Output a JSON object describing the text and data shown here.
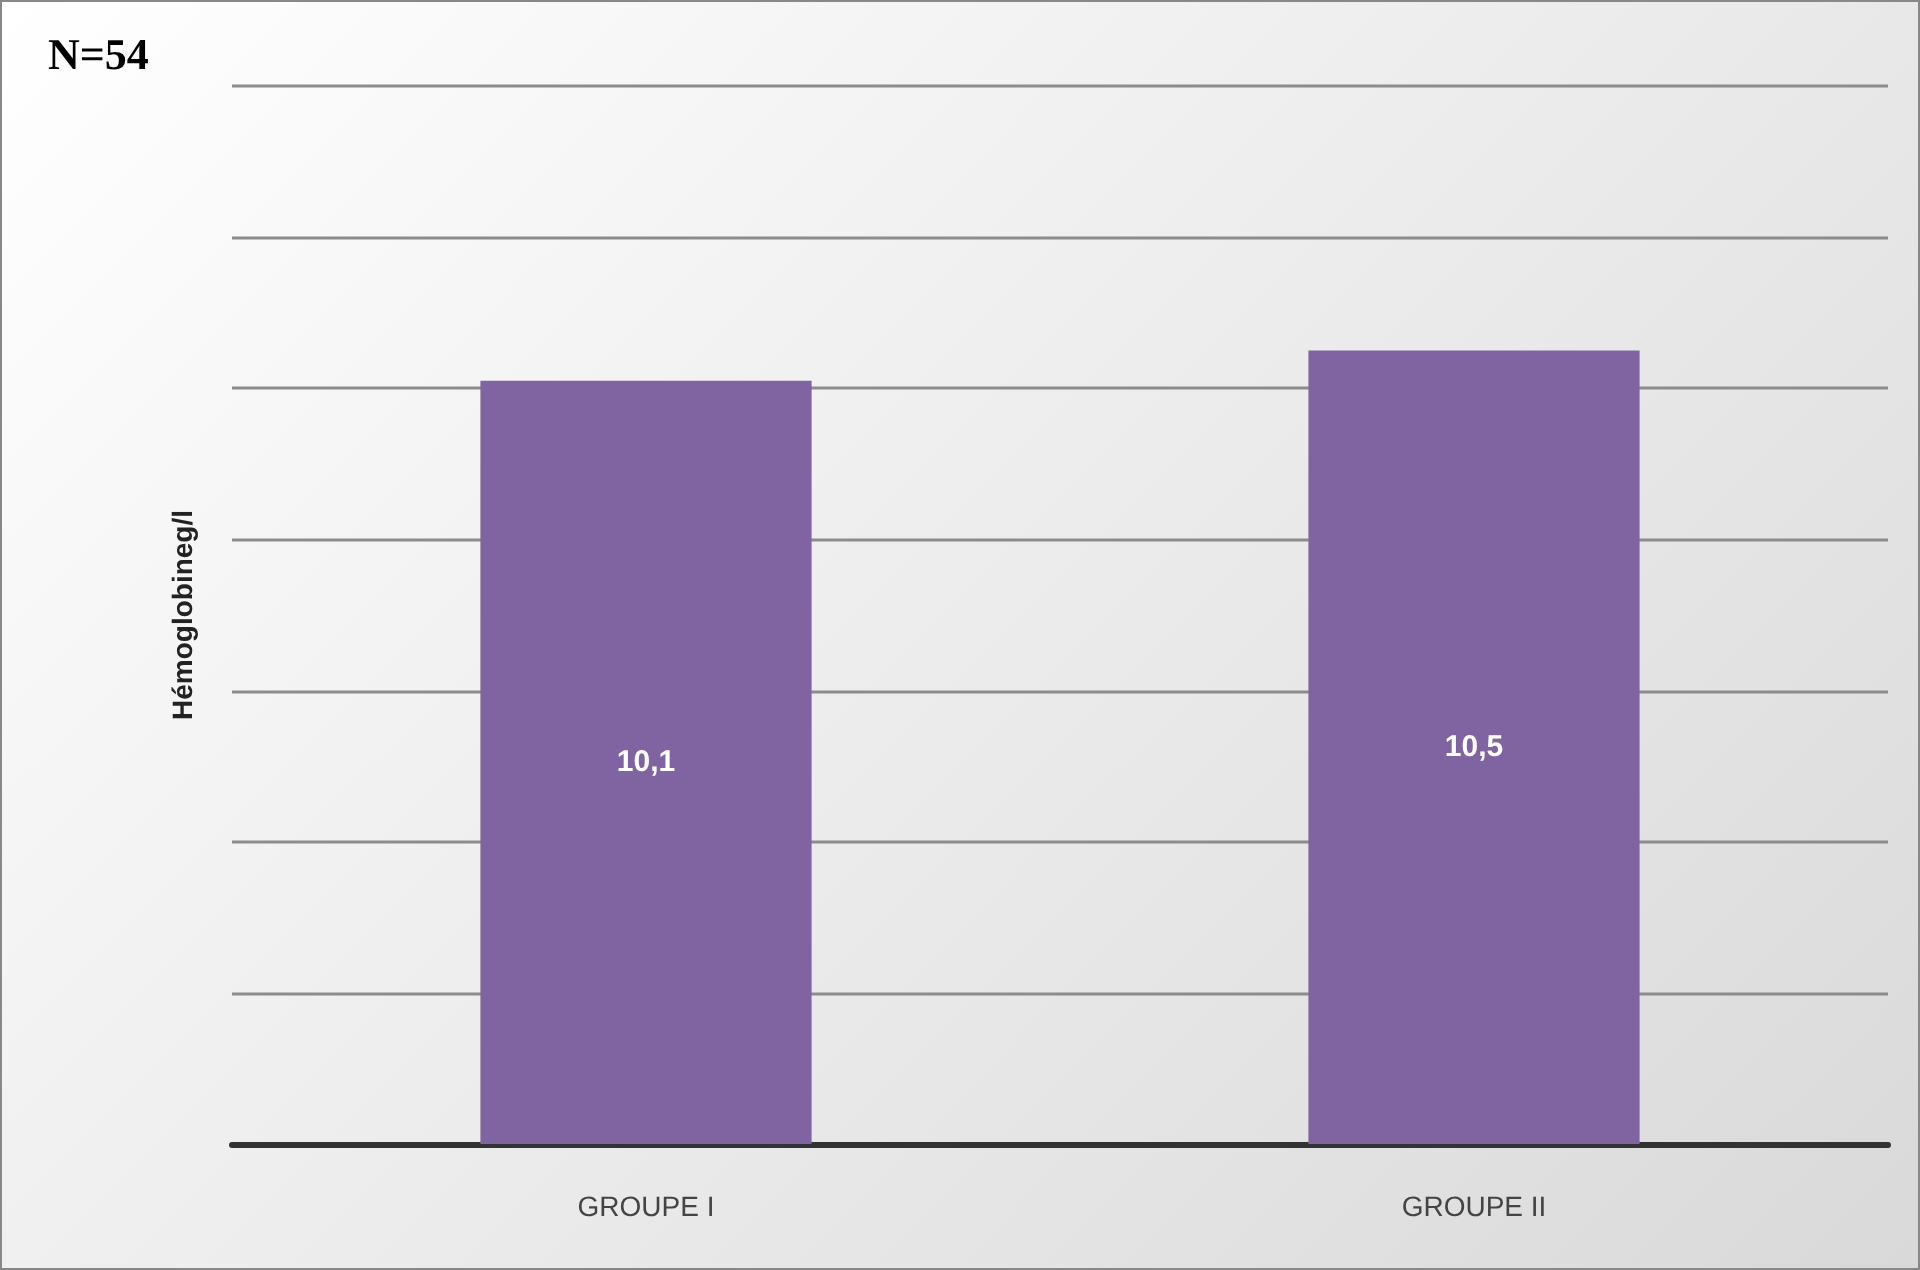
{
  "chart_data": {
    "type": "bar",
    "title": "N=54",
    "ylabel": "Hémoglobineg/l",
    "categories": [
      "GROUPE I",
      "GROUPE II"
    ],
    "values": [
      10.1,
      10.5
    ],
    "value_labels": [
      "10,1",
      "10,5"
    ],
    "color": "#8064a2",
    "ylim": [
      0,
      14
    ],
    "yticks": [
      {
        "value": 0,
        "label": null
      },
      {
        "value": 2,
        "label": null
      },
      {
        "value": 4,
        "label": null
      },
      {
        "value": 6,
        "label": null
      },
      {
        "value": 8,
        "label": null
      },
      {
        "value": 10,
        "label": null
      },
      {
        "value": 12,
        "label": null
      },
      {
        "value": 14,
        "label": null
      }
    ],
    "grid": "y",
    "tick_labels": "x"
  }
}
